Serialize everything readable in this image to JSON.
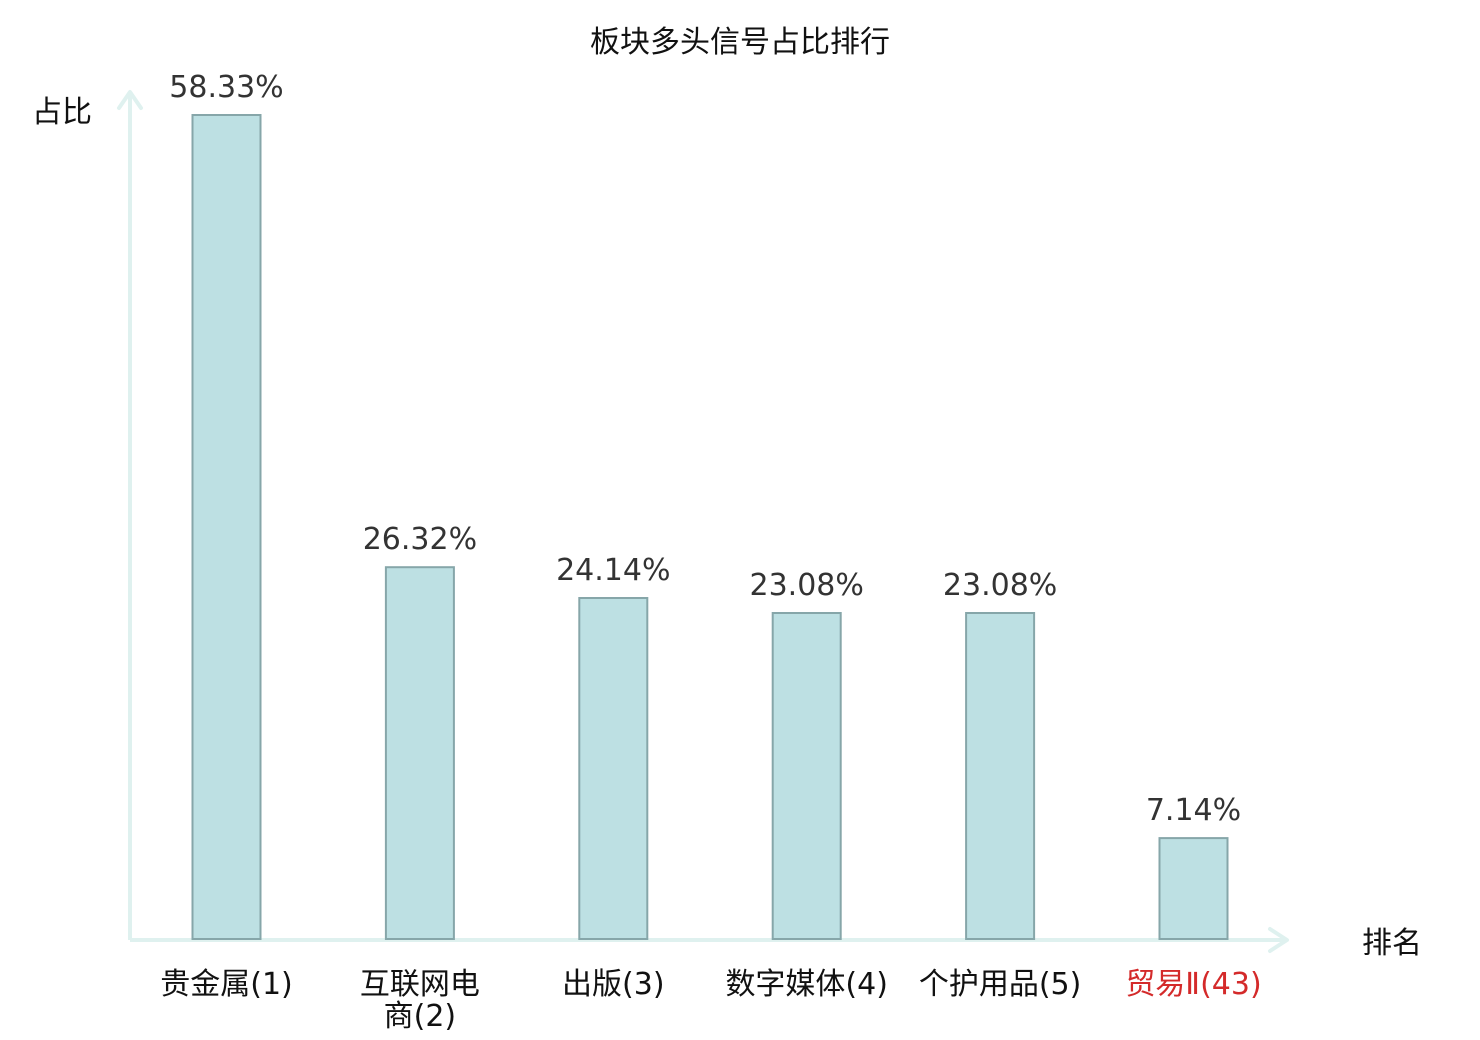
{
  "chart_data": {
    "type": "bar",
    "title": "板块多头信号占比排行",
    "ylabel": "占比",
    "xlabel": "排名",
    "categories": [
      {
        "name": "贵金属",
        "rank": "(1)",
        "lines": [
          "贵金属(1)"
        ],
        "highlight": false
      },
      {
        "name": "互联网电商",
        "rank": "(2)",
        "lines": [
          "互联网电",
          "商(2)"
        ],
        "highlight": false
      },
      {
        "name": "出版",
        "rank": "(3)",
        "lines": [
          "出版(3)"
        ],
        "highlight": false
      },
      {
        "name": "数字媒体",
        "rank": "(4)",
        "lines": [
          "数字媒体(4)"
        ],
        "highlight": false
      },
      {
        "name": "个护用品",
        "rank": "(5)",
        "lines": [
          "个护用品(5)"
        ],
        "highlight": false
      },
      {
        "name": "贸易Ⅱ",
        "rank": "(43)",
        "lines": [
          "贸易Ⅱ(43)"
        ],
        "highlight": true
      }
    ],
    "values": [
      58.33,
      26.32,
      24.14,
      23.08,
      23.08,
      7.14
    ],
    "value_labels": [
      "58.33%",
      "26.32%",
      "24.14%",
      "23.08%",
      "23.08%",
      "7.14%"
    ],
    "ylim": [
      0,
      58.33
    ],
    "grid": false,
    "legend": "none"
  },
  "colors": {
    "bar_fill": "#bde0e3",
    "bar_stroke": "#86a6a9",
    "axis": "#dff1ef",
    "text": "#111111",
    "value_text": "#333333",
    "highlight_text": "#d42a2a"
  }
}
